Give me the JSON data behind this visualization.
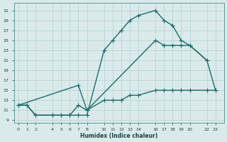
{
  "xlabel": "Humidex (Indice chaleur)",
  "bg_color": "#daeaea",
  "grid_color": "#b8d4d4",
  "line_color": "#1a6b6b",
  "ylim": [
    8.5,
    32.5
  ],
  "xlim": [
    -0.5,
    24
  ],
  "yticks": [
    9,
    11,
    13,
    15,
    17,
    19,
    21,
    23,
    25,
    27,
    29,
    31
  ],
  "xticks": [
    0,
    1,
    2,
    4,
    5,
    6,
    7,
    8,
    10,
    11,
    12,
    13,
    14,
    16,
    17,
    18,
    19,
    20,
    22,
    23
  ],
  "curve1_x": [
    0,
    1,
    2,
    4,
    5,
    6,
    7,
    8,
    10,
    11,
    12,
    13,
    14,
    16,
    17,
    18,
    19,
    20,
    22
  ],
  "curve1_y": [
    12,
    12,
    10,
    10,
    10,
    10,
    10,
    10,
    23,
    25,
    27,
    29,
    30,
    31,
    29,
    28,
    25,
    24,
    21
  ],
  "curve2_x": [
    0,
    7,
    8,
    16,
    17,
    18,
    19,
    20,
    22,
    23
  ],
  "curve2_y": [
    12,
    16,
    11,
    25,
    24,
    24,
    24,
    24,
    21,
    15
  ],
  "curve3_x": [
    0,
    1,
    2,
    4,
    5,
    6,
    7,
    8,
    10,
    11,
    12,
    13,
    14,
    16,
    17,
    18,
    19,
    20,
    22,
    23
  ],
  "curve3_y": [
    12,
    12,
    10,
    10,
    10,
    10,
    12,
    11,
    13,
    13,
    13,
    14,
    14,
    15,
    15,
    15,
    15,
    15,
    15,
    15
  ],
  "marker": "+",
  "markersize": 4,
  "linewidth": 1.0
}
